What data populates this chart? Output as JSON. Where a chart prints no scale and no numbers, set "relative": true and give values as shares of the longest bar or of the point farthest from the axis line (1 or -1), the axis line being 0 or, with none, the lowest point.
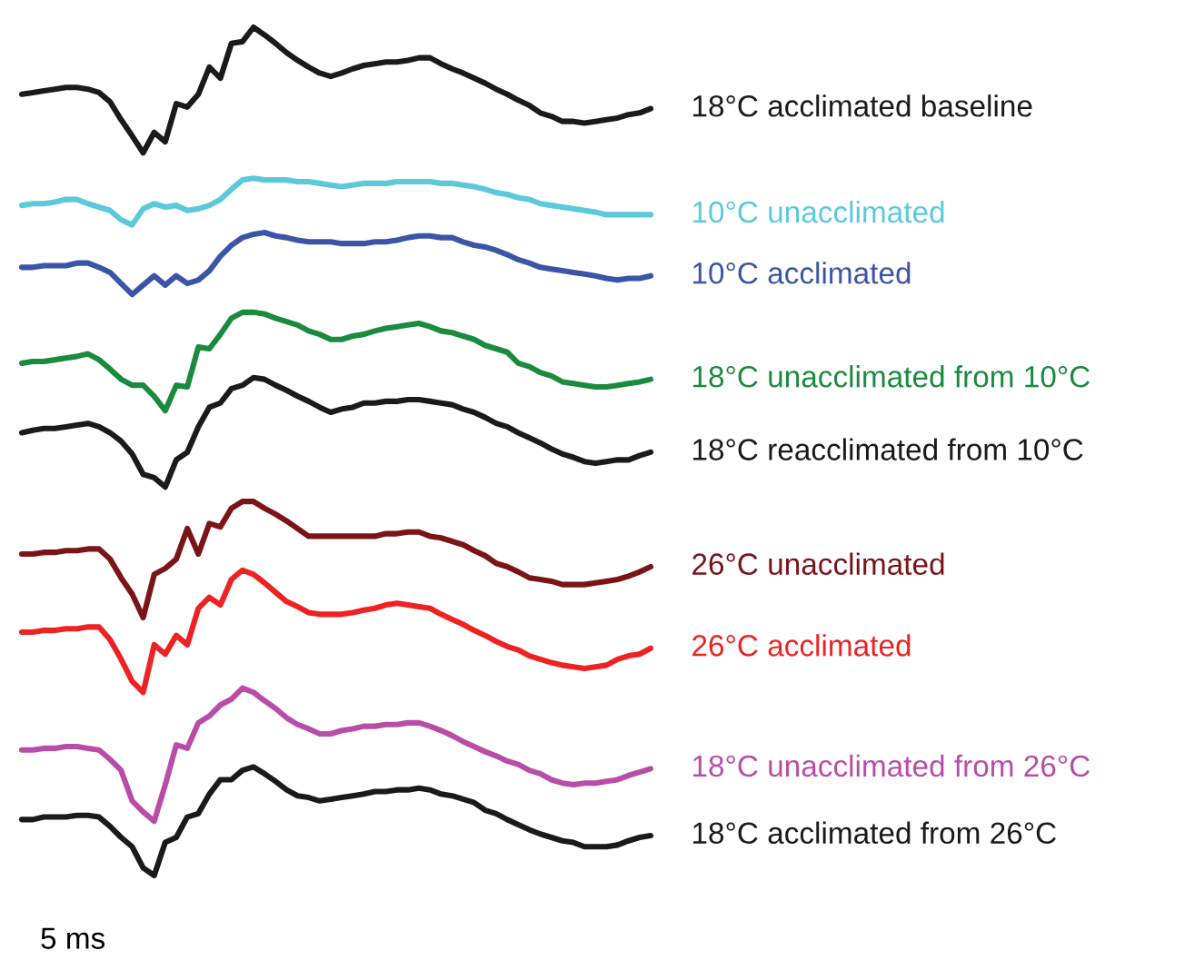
{
  "chart_data": {
    "type": "line",
    "relative": true,
    "categories": [
      null,
      null,
      null,
      null,
      null,
      null,
      null,
      null,
      null,
      null,
      null,
      null,
      null,
      null,
      null,
      null,
      null,
      null,
      null,
      null,
      null,
      null,
      null,
      null,
      null,
      null,
      null,
      null,
      null,
      null,
      null,
      null,
      null,
      null,
      null,
      null,
      null,
      null,
      null,
      null,
      null,
      null,
      null,
      null,
      null,
      null,
      null,
      null,
      null,
      null,
      null,
      null,
      null,
      null,
      null,
      null,
      null,
      null
    ],
    "annotations": [
      "5 ms"
    ],
    "series": [
      {
        "name": "18°C acclimated baseline",
        "color": "#1a1a1a",
        "values": [
          0.921,
          0.923,
          0.925,
          0.927,
          0.929,
          0.929,
          0.927,
          0.923,
          0.912,
          0.891,
          0.872,
          0.852,
          0.876,
          0.865,
          0.91,
          0.906,
          0.921,
          0.953,
          0.94,
          0.981,
          0.983,
          1.0,
          0.991,
          0.981,
          0.97,
          0.961,
          0.953,
          0.946,
          0.942,
          0.946,
          0.951,
          0.955,
          0.957,
          0.959,
          0.959,
          0.961,
          0.964,
          0.964,
          0.957,
          0.951,
          0.946,
          0.94,
          0.934,
          0.927,
          0.921,
          0.914,
          0.908,
          0.899,
          0.895,
          0.889,
          0.889,
          0.887,
          0.889,
          0.891,
          0.893,
          0.897,
          0.899,
          0.904
        ]
      },
      {
        "name": "10°C unacclimated",
        "color": "#5bc8dc",
        "values": [
          0.79,
          0.792,
          0.792,
          0.794,
          0.797,
          0.797,
          0.792,
          0.788,
          0.784,
          0.773,
          0.767,
          0.786,
          0.792,
          0.788,
          0.79,
          0.784,
          0.786,
          0.79,
          0.797,
          0.809,
          0.82,
          0.822,
          0.82,
          0.82,
          0.82,
          0.818,
          0.818,
          0.816,
          0.814,
          0.812,
          0.814,
          0.816,
          0.816,
          0.816,
          0.818,
          0.818,
          0.818,
          0.818,
          0.816,
          0.816,
          0.814,
          0.812,
          0.809,
          0.805,
          0.803,
          0.799,
          0.797,
          0.792,
          0.79,
          0.788,
          0.786,
          0.784,
          0.782,
          0.779,
          0.779,
          0.779,
          0.779,
          0.779
        ]
      },
      {
        "name": "10°C acclimated",
        "color": "#3a55a8",
        "values": [
          0.717,
          0.717,
          0.719,
          0.719,
          0.719,
          0.722,
          0.722,
          0.717,
          0.711,
          0.698,
          0.685,
          0.696,
          0.707,
          0.696,
          0.707,
          0.698,
          0.702,
          0.713,
          0.73,
          0.743,
          0.752,
          0.756,
          0.758,
          0.754,
          0.752,
          0.749,
          0.747,
          0.747,
          0.747,
          0.745,
          0.745,
          0.745,
          0.747,
          0.747,
          0.749,
          0.752,
          0.754,
          0.754,
          0.752,
          0.752,
          0.747,
          0.743,
          0.741,
          0.737,
          0.732,
          0.726,
          0.722,
          0.717,
          0.715,
          0.713,
          0.711,
          0.709,
          0.707,
          0.704,
          0.702,
          0.704,
          0.704,
          0.707
        ]
      },
      {
        "name": "18°C unacclimated from 10°C",
        "color": "#1a8a3e",
        "values": [
          0.604,
          0.606,
          0.606,
          0.608,
          0.61,
          0.612,
          0.615,
          0.608,
          0.597,
          0.585,
          0.578,
          0.578,
          0.565,
          0.548,
          0.578,
          0.576,
          0.623,
          0.621,
          0.638,
          0.657,
          0.664,
          0.664,
          0.662,
          0.657,
          0.653,
          0.649,
          0.642,
          0.638,
          0.632,
          0.632,
          0.636,
          0.638,
          0.642,
          0.645,
          0.647,
          0.649,
          0.651,
          0.647,
          0.642,
          0.64,
          0.636,
          0.632,
          0.625,
          0.621,
          0.617,
          0.604,
          0.6,
          0.593,
          0.589,
          0.582,
          0.58,
          0.578,
          0.576,
          0.576,
          0.578,
          0.58,
          0.582,
          0.585
        ]
      },
      {
        "name": "18°C reacclimated from 10°C",
        "color": "#1a1a1a",
        "values": [
          0.522,
          0.525,
          0.527,
          0.527,
          0.529,
          0.531,
          0.533,
          0.529,
          0.522,
          0.512,
          0.497,
          0.473,
          0.469,
          0.458,
          0.49,
          0.499,
          0.529,
          0.552,
          0.557,
          0.574,
          0.578,
          0.587,
          0.585,
          0.578,
          0.572,
          0.565,
          0.559,
          0.552,
          0.546,
          0.55,
          0.552,
          0.557,
          0.557,
          0.559,
          0.559,
          0.561,
          0.561,
          0.559,
          0.557,
          0.555,
          0.55,
          0.546,
          0.54,
          0.533,
          0.529,
          0.522,
          0.516,
          0.51,
          0.503,
          0.497,
          0.493,
          0.488,
          0.486,
          0.488,
          0.49,
          0.49,
          0.495,
          0.499
        ]
      },
      {
        "name": "26°C unacclimated",
        "color": "#7a1418",
        "values": [
          0.379,
          0.379,
          0.381,
          0.381,
          0.383,
          0.383,
          0.385,
          0.385,
          0.373,
          0.351,
          0.332,
          0.304,
          0.355,
          0.362,
          0.373,
          0.409,
          0.379,
          0.415,
          0.411,
          0.433,
          0.441,
          0.441,
          0.433,
          0.426,
          0.418,
          0.409,
          0.4,
          0.4,
          0.4,
          0.4,
          0.4,
          0.4,
          0.4,
          0.403,
          0.403,
          0.405,
          0.405,
          0.4,
          0.398,
          0.394,
          0.39,
          0.383,
          0.377,
          0.368,
          0.364,
          0.358,
          0.351,
          0.349,
          0.347,
          0.343,
          0.343,
          0.343,
          0.345,
          0.347,
          0.349,
          0.353,
          0.358,
          0.364
        ]
      },
      {
        "name": "26°C acclimated",
        "color": "#ee2222",
        "values": [
          0.287,
          0.287,
          0.289,
          0.289,
          0.291,
          0.291,
          0.293,
          0.293,
          0.278,
          0.255,
          0.229,
          0.216,
          0.272,
          0.261,
          0.283,
          0.272,
          0.315,
          0.328,
          0.319,
          0.349,
          0.36,
          0.355,
          0.345,
          0.334,
          0.323,
          0.317,
          0.31,
          0.308,
          0.308,
          0.308,
          0.31,
          0.313,
          0.315,
          0.319,
          0.321,
          0.319,
          0.317,
          0.315,
          0.308,
          0.302,
          0.296,
          0.289,
          0.283,
          0.276,
          0.27,
          0.266,
          0.259,
          0.255,
          0.251,
          0.248,
          0.246,
          0.244,
          0.246,
          0.248,
          0.255,
          0.259,
          0.261,
          0.268
        ]
      },
      {
        "name": "18°C unacclimated from 26°C",
        "color": "#b84da8",
        "values": [
          0.148,
          0.148,
          0.15,
          0.15,
          0.152,
          0.152,
          0.15,
          0.148,
          0.137,
          0.124,
          0.088,
          0.075,
          0.064,
          0.107,
          0.154,
          0.15,
          0.18,
          0.188,
          0.201,
          0.208,
          0.221,
          0.216,
          0.206,
          0.197,
          0.186,
          0.178,
          0.173,
          0.167,
          0.167,
          0.171,
          0.173,
          0.176,
          0.176,
          0.178,
          0.178,
          0.18,
          0.18,
          0.176,
          0.171,
          0.165,
          0.158,
          0.152,
          0.146,
          0.141,
          0.135,
          0.131,
          0.124,
          0.12,
          0.113,
          0.109,
          0.107,
          0.109,
          0.109,
          0.111,
          0.113,
          0.118,
          0.122,
          0.126
        ]
      },
      {
        "name": "18°C acclimated from 26°C",
        "color": "#1a1a1a",
        "values": [
          0.066,
          0.066,
          0.069,
          0.069,
          0.069,
          0.071,
          0.071,
          0.069,
          0.058,
          0.045,
          0.034,
          0.009,
          0,
          0.039,
          0.045,
          0.069,
          0.073,
          0.096,
          0.113,
          0.113,
          0.124,
          0.128,
          0.12,
          0.111,
          0.101,
          0.094,
          0.092,
          0.088,
          0.09,
          0.092,
          0.094,
          0.096,
          0.099,
          0.099,
          0.101,
          0.101,
          0.103,
          0.101,
          0.096,
          0.094,
          0.09,
          0.086,
          0.077,
          0.073,
          0.066,
          0.06,
          0.054,
          0.049,
          0.045,
          0.041,
          0.039,
          0.034,
          0.034,
          0.034,
          0.036,
          0.041,
          0.045,
          0.047
        ]
      }
    ]
  }
}
